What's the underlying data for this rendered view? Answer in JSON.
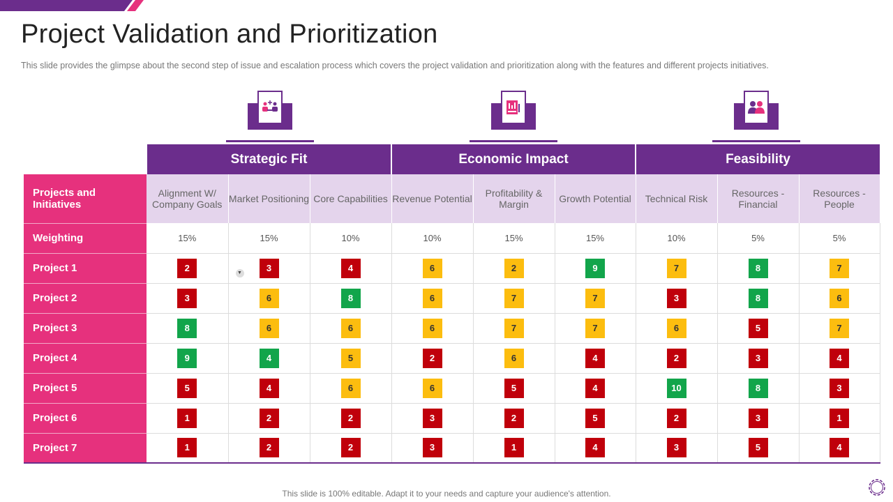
{
  "slide": {
    "title": "Project Validation and Prioritization",
    "subtitle": "This slide provides  the glimpse about the second step of issue and escalation process which covers the project validation  and prioritization along with the features and different  projects initiatives.",
    "footer": "This slide is 100% editable. Adapt it to your needs and capture your audience's attention."
  },
  "colors": {
    "purple": "#6b2d8c",
    "pink": "#e6317d",
    "lavender": "#e4d4ec",
    "red": "#c0000b",
    "yellow": "#fcbd0f",
    "green": "#12a54b"
  },
  "groups": [
    {
      "label": "Strategic Fit",
      "icon": "team-meeting-icon"
    },
    {
      "label": "Economic Impact",
      "icon": "financial-report-icon"
    },
    {
      "label": "Feasibility",
      "icon": "people-icon"
    }
  ],
  "table": {
    "row_header_label": "Projects and Initiatives",
    "weighting_label": "Weighting",
    "columns": [
      "Alignment W/ Company Goals",
      "Market Positioning",
      "Core Capabilities",
      "Revenue Potential",
      "Profitability & Margin",
      "Growth Potential",
      "Technical Risk",
      "Resources - Financial",
      "Resources - People"
    ],
    "weights": [
      "15%",
      "15%",
      "10%",
      "10%",
      "15%",
      "15%",
      "10%",
      "5%",
      "5%"
    ],
    "projects": [
      {
        "name": "Project 1",
        "scores": [
          {
            "v": "2",
            "c": "red"
          },
          {
            "v": "3",
            "c": "red"
          },
          {
            "v": "4",
            "c": "red"
          },
          {
            "v": "6",
            "c": "yellow"
          },
          {
            "v": "2",
            "c": "yellow"
          },
          {
            "v": "9",
            "c": "green"
          },
          {
            "v": "7",
            "c": "yellow"
          },
          {
            "v": "8",
            "c": "green"
          },
          {
            "v": "7",
            "c": "yellow"
          }
        ]
      },
      {
        "name": "Project 2",
        "scores": [
          {
            "v": "3",
            "c": "red"
          },
          {
            "v": "6",
            "c": "yellow"
          },
          {
            "v": "8",
            "c": "green"
          },
          {
            "v": "6",
            "c": "yellow"
          },
          {
            "v": "7",
            "c": "yellow"
          },
          {
            "v": "7",
            "c": "yellow"
          },
          {
            "v": "3",
            "c": "red"
          },
          {
            "v": "8",
            "c": "green"
          },
          {
            "v": "6",
            "c": "yellow"
          }
        ]
      },
      {
        "name": "Project 3",
        "scores": [
          {
            "v": "8",
            "c": "green"
          },
          {
            "v": "6",
            "c": "yellow"
          },
          {
            "v": "6",
            "c": "yellow"
          },
          {
            "v": "6",
            "c": "yellow"
          },
          {
            "v": "7",
            "c": "yellow"
          },
          {
            "v": "7",
            "c": "yellow"
          },
          {
            "v": "6",
            "c": "yellow"
          },
          {
            "v": "5",
            "c": "red"
          },
          {
            "v": "7",
            "c": "yellow"
          }
        ]
      },
      {
        "name": "Project 4",
        "scores": [
          {
            "v": "9",
            "c": "green"
          },
          {
            "v": "4",
            "c": "green"
          },
          {
            "v": "5",
            "c": "yellow"
          },
          {
            "v": "2",
            "c": "red"
          },
          {
            "v": "6",
            "c": "yellow"
          },
          {
            "v": "4",
            "c": "red"
          },
          {
            "v": "2",
            "c": "red"
          },
          {
            "v": "3",
            "c": "red"
          },
          {
            "v": "4",
            "c": "red"
          }
        ]
      },
      {
        "name": "Project 5",
        "scores": [
          {
            "v": "5",
            "c": "red"
          },
          {
            "v": "4",
            "c": "red"
          },
          {
            "v": "6",
            "c": "yellow"
          },
          {
            "v": "6",
            "c": "yellow"
          },
          {
            "v": "5",
            "c": "red"
          },
          {
            "v": "4",
            "c": "red"
          },
          {
            "v": "10",
            "c": "green"
          },
          {
            "v": "8",
            "c": "green"
          },
          {
            "v": "3",
            "c": "red"
          }
        ]
      },
      {
        "name": "Project 6",
        "scores": [
          {
            "v": "1",
            "c": "red"
          },
          {
            "v": "2",
            "c": "red"
          },
          {
            "v": "2",
            "c": "red"
          },
          {
            "v": "3",
            "c": "red"
          },
          {
            "v": "2",
            "c": "red"
          },
          {
            "v": "5",
            "c": "red"
          },
          {
            "v": "2",
            "c": "red"
          },
          {
            "v": "3",
            "c": "red"
          },
          {
            "v": "1",
            "c": "red"
          }
        ]
      },
      {
        "name": "Project 7",
        "scores": [
          {
            "v": "1",
            "c": "red"
          },
          {
            "v": "2",
            "c": "red"
          },
          {
            "v": "2",
            "c": "red"
          },
          {
            "v": "3",
            "c": "red"
          },
          {
            "v": "1",
            "c": "red"
          },
          {
            "v": "4",
            "c": "red"
          },
          {
            "v": "3",
            "c": "red"
          },
          {
            "v": "5",
            "c": "red"
          },
          {
            "v": "4",
            "c": "red"
          }
        ]
      }
    ]
  }
}
